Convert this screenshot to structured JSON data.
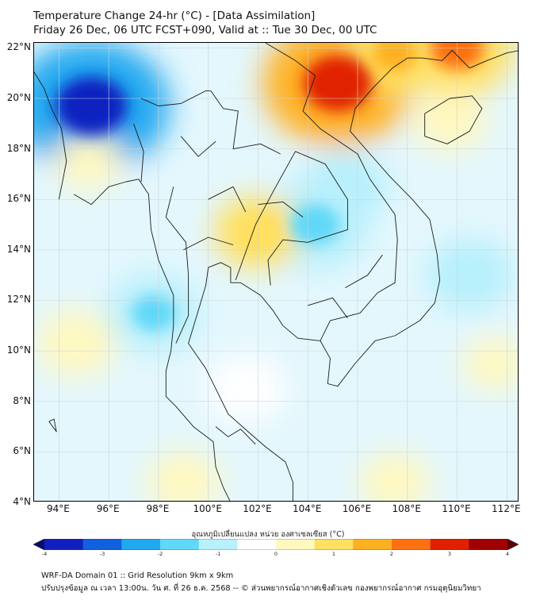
{
  "header": {
    "title_line1": "Temperature Change 24-hr (°C) - [Data Assimilation]",
    "title_line2": "Friday 26 Dec, 06 UTC FCST+090, Valid at :: Tue 30 Dec, 00 UTC"
  },
  "axes": {
    "lat_labels": [
      "22°N",
      "20°N",
      "18°N",
      "16°N",
      "14°N",
      "12°N",
      "10°N",
      "8°N",
      "6°N",
      "4°N"
    ],
    "lon_labels": [
      "94°E",
      "96°E",
      "98°E",
      "100°E",
      "102°E",
      "104°E",
      "106°E",
      "108°E",
      "110°E",
      "112°E"
    ]
  },
  "colorbar": {
    "title": "อุณหภูมิเปลี่ยนแปลง หน่วย องศาเซลเซียส (°C)",
    "ticks": [
      "-4",
      "-3",
      "-2",
      "-1",
      "0",
      "1",
      "2",
      "3",
      "4"
    ],
    "min": -4,
    "max": 4,
    "colors": [
      "#0a0a6e",
      "#1020c0",
      "#1060e0",
      "#20a8f0",
      "#60d8f8",
      "#b8f0fc",
      "#ffffff",
      "#fff8c0",
      "#ffe060",
      "#ffb020",
      "#ff7010",
      "#e02000",
      "#a00000",
      "#600000"
    ]
  },
  "footer": {
    "line1": "WRF-DA Domain 01 :: Grid Resolution 9km x 9km",
    "line2": "ปรับปรุงข้อมูล ณ เวลา 13:00น. วัน ศ. ที่ 26 ธ.ค. 2568 -- © ส่วนพยากรณ์อากาศเชิงตัวเลข กองพยากรณ์อากาศ กรมอุตุนิยมวิทยา"
  },
  "chart_data": {
    "type": "heatmap",
    "title": "Temperature Change 24-hr (°C)",
    "lon_range": [
      93,
      112.5
    ],
    "lat_range": [
      4,
      22.2
    ],
    "units": "°C",
    "features": [
      {
        "name": "strong cooling off Myanmar coast",
        "lon": 95.3,
        "lat": 19.7,
        "value": -3.0
      },
      {
        "name": "cooling over northern Cambodia",
        "lon": 104.3,
        "lat": 15.0,
        "value": -1.6
      },
      {
        "name": "cooling over central Laos",
        "lon": 105.5,
        "lat": 16.5,
        "value": -1.0
      },
      {
        "name": "cooling over Andaman Sea",
        "lon": 97.8,
        "lat": 11.5,
        "value": -1.2
      },
      {
        "name": "cooling near Gulf of Thailand",
        "lon": 101.5,
        "lat": 8.5,
        "value": -0.8
      },
      {
        "name": "cooling off central Vietnam",
        "lon": 110.5,
        "lat": 13.0,
        "value": -1.0
      },
      {
        "name": "warming over northern Vietnam",
        "lon": 105.2,
        "lat": 20.6,
        "value": 2.8
      },
      {
        "name": "warming over southern China",
        "lon": 107.5,
        "lat": 21.8,
        "value": 1.3
      },
      {
        "name": "warming near Gulf of Tonkin",
        "lon": 110.0,
        "lat": 22.0,
        "value": 1.8
      },
      {
        "name": "warming over Hainan",
        "lon": 109.7,
        "lat": 19.1,
        "value": 0.6
      },
      {
        "name": "warming over central Thailand",
        "lon": 102.0,
        "lat": 14.7,
        "value": 1.0
      },
      {
        "name": "warming west of Andaman",
        "lon": 94.7,
        "lat": 10.3,
        "value": 0.8
      },
      {
        "name": "warming north Andaman",
        "lon": 95.2,
        "lat": 17.5,
        "value": 0.4
      },
      {
        "name": "warming southern Malay peninsula",
        "lon": 99.0,
        "lat": 4.8,
        "value": 0.6
      },
      {
        "name": "warming South China Sea south",
        "lon": 107.5,
        "lat": 4.8,
        "value": 0.5
      },
      {
        "name": "warming west Borneo sea",
        "lon": 111.5,
        "lat": 9.5,
        "value": 0.3
      }
    ]
  }
}
